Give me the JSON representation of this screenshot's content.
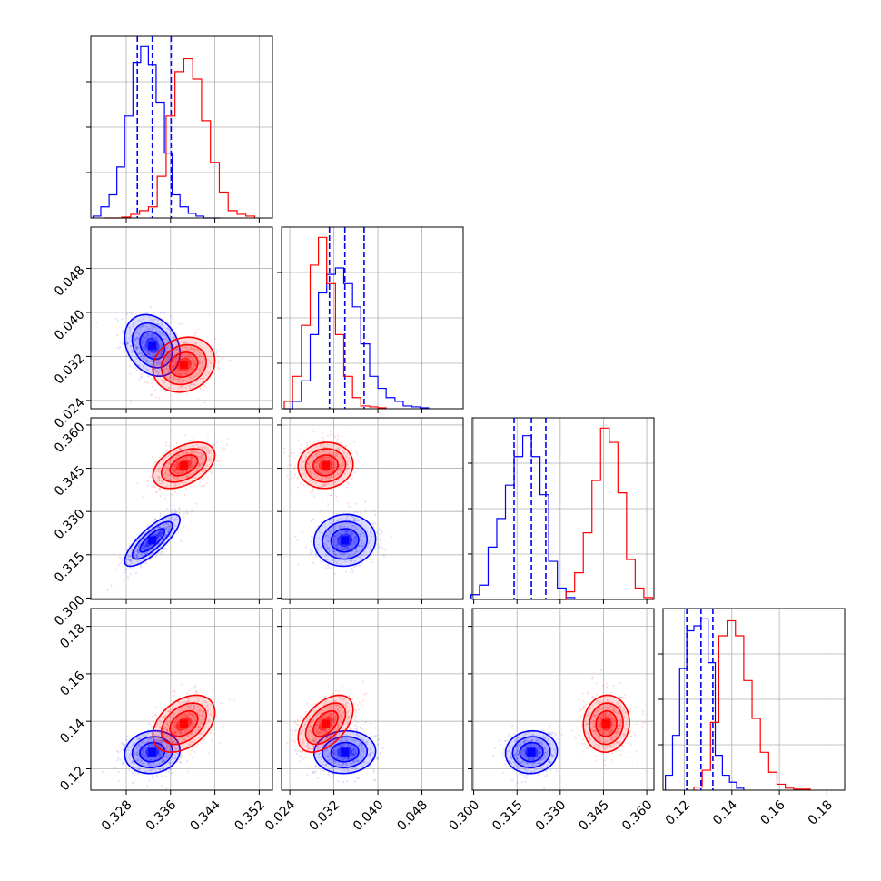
{
  "chart_data": {
    "type": "corner",
    "grid": true,
    "parameters": [
      {
        "ticks": [
          0.328,
          0.336,
          0.344,
          0.352
        ],
        "tick_labels": [
          "0.328",
          "0.336",
          "0.344",
          "0.352"
        ],
        "range": [
          0.3216,
          0.3544
        ]
      },
      {
        "ticks": [
          0.024,
          0.032,
          0.04,
          0.048
        ],
        "tick_labels": [
          "0.024",
          "0.032",
          "0.040",
          "0.048"
        ],
        "range": [
          0.0225,
          0.0555
        ]
      },
      {
        "ticks": [
          0.3,
          0.315,
          0.33,
          0.345,
          0.36
        ],
        "tick_labels": [
          "0.300",
          "0.315",
          "0.330",
          "0.345",
          "0.360"
        ],
        "range": [
          0.2995,
          0.3625
        ]
      },
      {
        "ticks": [
          0.12,
          0.14,
          0.16,
          0.18
        ],
        "tick_labels": [
          "0.12",
          "0.14",
          "0.16",
          "0.18"
        ],
        "range": [
          0.111,
          0.1875
        ]
      }
    ],
    "series": [
      {
        "color": "#0000ff",
        "means": [
          0.3327,
          0.034,
          0.32,
          0.127
        ],
        "sds": [
          0.0025,
          0.0028,
          0.0045,
          0.0045
        ],
        "correlations": [
          [
            0,
            1,
            -0.25
          ],
          [
            0,
            2,
            0.8
          ],
          [
            0,
            3,
            0.1
          ],
          [
            1,
            2,
            0.05
          ],
          [
            1,
            3,
            0.05
          ],
          [
            2,
            3,
            0.05
          ]
        ],
        "quantiles": [
          [
            0.33,
            0.3327,
            0.3361
          ],
          [
            0.0312,
            0.034,
            0.0375
          ],
          [
            0.314,
            0.32,
            0.325
          ],
          [
            0.121,
            0.127,
            0.132
          ]
        ],
        "histograms": [
          {
            "edges": [
              0.322,
              0.3234,
              0.3249,
              0.3263,
              0.3277,
              0.3292,
              0.3306,
              0.332,
              0.3334,
              0.3349,
              0.3363,
              0.3377,
              0.3392,
              0.3406,
              0.342,
              0.3434,
              0.3449
            ],
            "counts": [
              2,
              12,
              25,
              55,
              110,
              168,
              185,
              165,
              125,
              70,
              25,
              12,
              5,
              2,
              0,
              0
            ]
          },
          {
            "edges": [
              0.023,
              0.0245,
              0.0261,
              0.0277,
              0.0292,
              0.0307,
              0.0323,
              0.0338,
              0.0354,
              0.0369,
              0.0385,
              0.04,
              0.0415,
              0.0431,
              0.0446,
              0.0462,
              0.0477,
              0.0492
            ],
            "counts": [
              0,
              8,
              30,
              80,
              125,
              145,
              152,
              135,
              110,
              70,
              35,
              22,
              12,
              8,
              3,
              2,
              1
            ]
          },
          {
            "edges": [
              0.299,
              0.302,
              0.305,
              0.308,
              0.311,
              0.314,
              0.317,
              0.32,
              0.323,
              0.326,
              0.329,
              0.332,
              0.335
            ],
            "counts": [
              5,
              15,
              55,
              85,
              120,
              150,
              172,
              150,
              110,
              40,
              12,
              2
            ]
          },
          {
            "edges": [
              0.112,
              0.115,
              0.118,
              0.121,
              0.124,
              0.127,
              0.13,
              0.133,
              0.136,
              0.139,
              0.142,
              0.145
            ],
            "counts": [
              15,
              55,
              122,
              160,
              165,
              172,
              128,
              35,
              15,
              8,
              2
            ]
          }
        ]
      },
      {
        "color": "#ff0000",
        "means": [
          0.3384,
          0.0305,
          0.346,
          0.139
        ],
        "sds": [
          0.0028,
          0.0025,
          0.004,
          0.006
        ],
        "correlations": [
          [
            0,
            1,
            0.15
          ],
          [
            0,
            2,
            0.45
          ],
          [
            0,
            3,
            0.4
          ],
          [
            1,
            2,
            0.05
          ],
          [
            1,
            3,
            0.5
          ],
          [
            2,
            3,
            0.05
          ]
        ],
        "quantiles": [],
        "histograms": [
          {
            "edges": [
              0.324,
              0.3256,
              0.3272,
              0.3288,
              0.3304,
              0.332,
              0.3336,
              0.3352,
              0.3368,
              0.3384,
              0.34,
              0.3416,
              0.3432,
              0.3448,
              0.3464,
              0.348,
              0.3496,
              0.3512
            ],
            "counts": [
              0,
              0,
              1,
              4,
              8,
              12,
              45,
              110,
              158,
              172,
              150,
              105,
              60,
              28,
              8,
              4,
              2
            ]
          },
          {
            "edges": [
              0.023,
              0.0245,
              0.0261,
              0.0277,
              0.0292,
              0.0307,
              0.0323,
              0.0338,
              0.0354,
              0.0369,
              0.0385,
              0.04,
              0.0415
            ],
            "counts": [
              8,
              35,
              90,
              155,
              185,
              135,
              80,
              35,
              12,
              3,
              2,
              1
            ]
          },
          {
            "edges": [
              0.329,
              0.332,
              0.335,
              0.338,
              0.341,
              0.344,
              0.347,
              0.35,
              0.353,
              0.356,
              0.359,
              0.362
            ],
            "counts": [
              0,
              8,
              28,
              70,
              125,
              180,
              165,
              112,
              42,
              12,
              2
            ]
          },
          {
            "edges": [
              0.124,
              0.1275,
              0.131,
              0.1345,
              0.138,
              0.1415,
              0.145,
              0.1485,
              0.152,
              0.1555,
              0.159,
              0.1625,
              0.166,
              0.1695,
              0.173
            ],
            "counts": [
              3,
              20,
              68,
              155,
              170,
              155,
              110,
              72,
              38,
              18,
              6,
              2,
              1,
              1
            ]
          }
        ]
      }
    ]
  }
}
